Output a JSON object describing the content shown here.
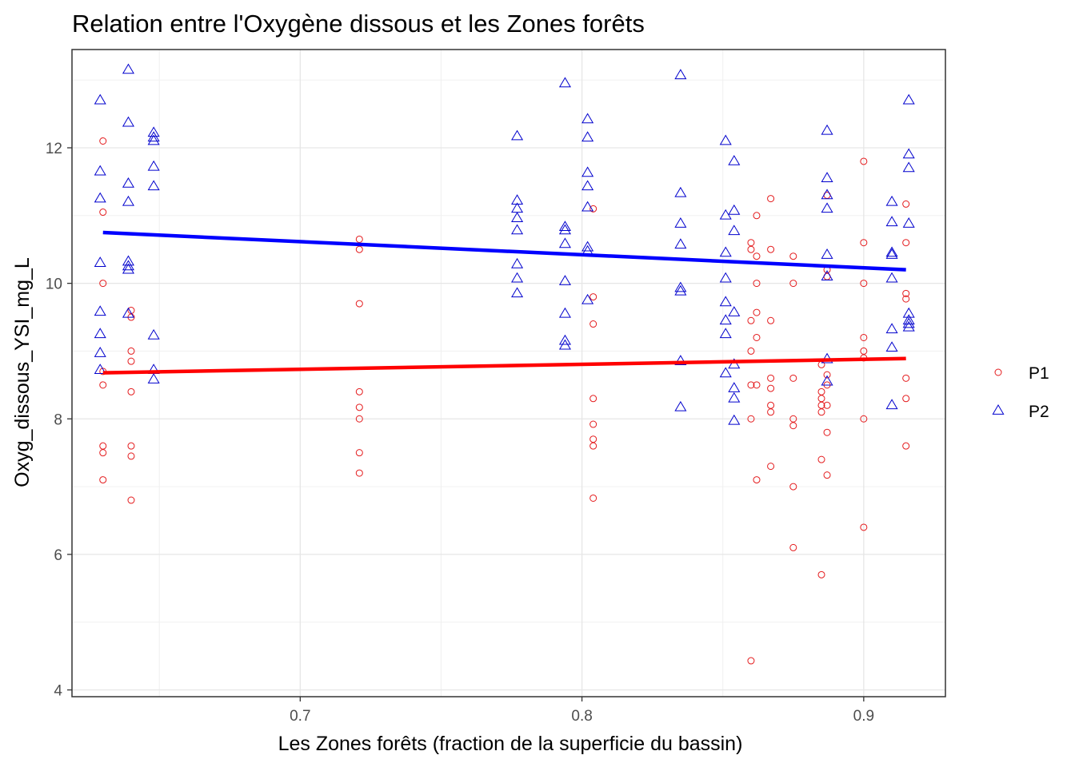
{
  "chart_data": {
    "type": "scatter",
    "title": "Relation entre l'Oxygène dissous et les Zones forêts",
    "xlabel": "Les Zones forêts (fraction de la superficie du bassin)",
    "ylabel": "Oxyg_dissous_YSI_mg_L",
    "xlim": [
      0.619,
      0.929
    ],
    "ylim": [
      3.9,
      13.45
    ],
    "xticks": [
      0.7,
      0.8,
      0.9
    ],
    "xtick_labels": [
      "0.7",
      "0.8",
      "0.9"
    ],
    "yticks": [
      4,
      6,
      8,
      10,
      12
    ],
    "ytick_labels": [
      "4",
      "6",
      "8",
      "10",
      "12"
    ],
    "grid": true,
    "legend_position": "right",
    "series": [
      {
        "name": "P1",
        "color": "#e41a1c",
        "line_color": "#ff0000",
        "marker": "circle",
        "points": [
          [
            0.63,
            12.1
          ],
          [
            0.63,
            11.05
          ],
          [
            0.63,
            10.0
          ],
          [
            0.63,
            8.7
          ],
          [
            0.63,
            8.5
          ],
          [
            0.63,
            7.6
          ],
          [
            0.63,
            7.5
          ],
          [
            0.63,
            7.1
          ],
          [
            0.64,
            9.6
          ],
          [
            0.64,
            9.5
          ],
          [
            0.64,
            9.0
          ],
          [
            0.64,
            8.85
          ],
          [
            0.64,
            8.4
          ],
          [
            0.64,
            7.6
          ],
          [
            0.64,
            7.45
          ],
          [
            0.64,
            6.8
          ],
          [
            0.721,
            10.65
          ],
          [
            0.721,
            10.5
          ],
          [
            0.721,
            9.7
          ],
          [
            0.721,
            8.4
          ],
          [
            0.721,
            8.17
          ],
          [
            0.721,
            8.0
          ],
          [
            0.721,
            7.5
          ],
          [
            0.721,
            7.2
          ],
          [
            0.804,
            11.1
          ],
          [
            0.804,
            9.8
          ],
          [
            0.804,
            9.4
          ],
          [
            0.804,
            8.3
          ],
          [
            0.804,
            7.92
          ],
          [
            0.804,
            7.7
          ],
          [
            0.804,
            7.6
          ],
          [
            0.804,
            6.83
          ],
          [
            0.86,
            10.6
          ],
          [
            0.86,
            10.5
          ],
          [
            0.86,
            9.45
          ],
          [
            0.86,
            9.0
          ],
          [
            0.86,
            8.5
          ],
          [
            0.86,
            8.0
          ],
          [
            0.86,
            4.43
          ],
          [
            0.862,
            11.0
          ],
          [
            0.862,
            10.4
          ],
          [
            0.862,
            10.0
          ],
          [
            0.862,
            9.57
          ],
          [
            0.862,
            9.2
          ],
          [
            0.862,
            8.5
          ],
          [
            0.862,
            7.1
          ],
          [
            0.867,
            11.25
          ],
          [
            0.867,
            10.5
          ],
          [
            0.867,
            9.45
          ],
          [
            0.867,
            8.6
          ],
          [
            0.867,
            8.45
          ],
          [
            0.867,
            8.2
          ],
          [
            0.867,
            8.1
          ],
          [
            0.867,
            7.3
          ],
          [
            0.875,
            10.4
          ],
          [
            0.875,
            10.0
          ],
          [
            0.875,
            8.6
          ],
          [
            0.875,
            8.0
          ],
          [
            0.875,
            7.9
          ],
          [
            0.875,
            7.0
          ],
          [
            0.875,
            6.1
          ],
          [
            0.885,
            8.8
          ],
          [
            0.885,
            8.4
          ],
          [
            0.885,
            8.3
          ],
          [
            0.885,
            8.2
          ],
          [
            0.885,
            8.1
          ],
          [
            0.885,
            7.4
          ],
          [
            0.885,
            5.7
          ],
          [
            0.887,
            11.3
          ],
          [
            0.887,
            10.2
          ],
          [
            0.887,
            10.1
          ],
          [
            0.887,
            8.65
          ],
          [
            0.887,
            8.5
          ],
          [
            0.887,
            8.2
          ],
          [
            0.887,
            7.8
          ],
          [
            0.887,
            7.17
          ],
          [
            0.9,
            11.8
          ],
          [
            0.9,
            10.6
          ],
          [
            0.9,
            10.0
          ],
          [
            0.9,
            9.2
          ],
          [
            0.9,
            9.0
          ],
          [
            0.9,
            8.9
          ],
          [
            0.9,
            8.0
          ],
          [
            0.9,
            6.4
          ],
          [
            0.915,
            11.17
          ],
          [
            0.915,
            10.6
          ],
          [
            0.915,
            9.85
          ],
          [
            0.915,
            9.77
          ],
          [
            0.915,
            8.6
          ],
          [
            0.915,
            8.3
          ],
          [
            0.915,
            7.6
          ]
        ],
        "trend": {
          "x": [
            0.63,
            0.915
          ],
          "y": [
            8.68,
            8.89
          ]
        }
      },
      {
        "name": "P2",
        "color": "#0000cd",
        "line_color": "#0000ff",
        "marker": "triangle",
        "points": [
          [
            0.629,
            12.7
          ],
          [
            0.629,
            11.65
          ],
          [
            0.629,
            11.25
          ],
          [
            0.629,
            10.3
          ],
          [
            0.629,
            9.58
          ],
          [
            0.629,
            9.25
          ],
          [
            0.629,
            8.97
          ],
          [
            0.629,
            8.72
          ],
          [
            0.639,
            13.15
          ],
          [
            0.639,
            12.37
          ],
          [
            0.639,
            11.47
          ],
          [
            0.639,
            11.2
          ],
          [
            0.639,
            10.32
          ],
          [
            0.639,
            10.25
          ],
          [
            0.639,
            10.2
          ],
          [
            0.639,
            9.55
          ],
          [
            0.648,
            12.22
          ],
          [
            0.648,
            12.15
          ],
          [
            0.648,
            12.1
          ],
          [
            0.648,
            11.72
          ],
          [
            0.648,
            11.43
          ],
          [
            0.648,
            9.23
          ],
          [
            0.648,
            8.72
          ],
          [
            0.648,
            8.58
          ],
          [
            0.777,
            12.17
          ],
          [
            0.777,
            11.22
          ],
          [
            0.777,
            11.1
          ],
          [
            0.777,
            10.96
          ],
          [
            0.777,
            10.78
          ],
          [
            0.777,
            10.28
          ],
          [
            0.777,
            10.07
          ],
          [
            0.777,
            9.85
          ],
          [
            0.794,
            12.95
          ],
          [
            0.794,
            10.83
          ],
          [
            0.794,
            10.78
          ],
          [
            0.794,
            10.58
          ],
          [
            0.794,
            10.03
          ],
          [
            0.794,
            9.55
          ],
          [
            0.794,
            9.15
          ],
          [
            0.794,
            9.08
          ],
          [
            0.802,
            12.42
          ],
          [
            0.802,
            12.15
          ],
          [
            0.802,
            11.63
          ],
          [
            0.802,
            11.43
          ],
          [
            0.802,
            11.12
          ],
          [
            0.802,
            10.53
          ],
          [
            0.802,
            10.47
          ],
          [
            0.802,
            9.75
          ],
          [
            0.835,
            13.07
          ],
          [
            0.835,
            11.33
          ],
          [
            0.835,
            10.88
          ],
          [
            0.835,
            10.57
          ],
          [
            0.835,
            9.93
          ],
          [
            0.835,
            9.88
          ],
          [
            0.835,
            8.85
          ],
          [
            0.835,
            8.17
          ],
          [
            0.851,
            12.1
          ],
          [
            0.851,
            11.0
          ],
          [
            0.851,
            10.45
          ],
          [
            0.851,
            10.07
          ],
          [
            0.851,
            9.72
          ],
          [
            0.851,
            9.45
          ],
          [
            0.851,
            9.25
          ],
          [
            0.851,
            8.67
          ],
          [
            0.854,
            11.8
          ],
          [
            0.854,
            11.07
          ],
          [
            0.854,
            10.77
          ],
          [
            0.854,
            9.57
          ],
          [
            0.854,
            8.8
          ],
          [
            0.854,
            8.45
          ],
          [
            0.854,
            8.3
          ],
          [
            0.854,
            7.97
          ],
          [
            0.887,
            12.25
          ],
          [
            0.887,
            11.55
          ],
          [
            0.887,
            11.3
          ],
          [
            0.887,
            11.1
          ],
          [
            0.887,
            10.42
          ],
          [
            0.887,
            10.1
          ],
          [
            0.887,
            8.88
          ],
          [
            0.887,
            8.55
          ],
          [
            0.91,
            11.2
          ],
          [
            0.91,
            10.9
          ],
          [
            0.91,
            10.45
          ],
          [
            0.91,
            10.42
          ],
          [
            0.91,
            10.07
          ],
          [
            0.91,
            9.32
          ],
          [
            0.91,
            9.05
          ],
          [
            0.91,
            8.2
          ],
          [
            0.916,
            12.7
          ],
          [
            0.916,
            11.9
          ],
          [
            0.916,
            11.7
          ],
          [
            0.916,
            10.88
          ],
          [
            0.916,
            9.55
          ],
          [
            0.916,
            9.45
          ],
          [
            0.916,
            9.4
          ],
          [
            0.916,
            9.35
          ]
        ],
        "trend": {
          "x": [
            0.63,
            0.915
          ],
          "y": [
            10.75,
            10.2
          ]
        }
      }
    ]
  }
}
